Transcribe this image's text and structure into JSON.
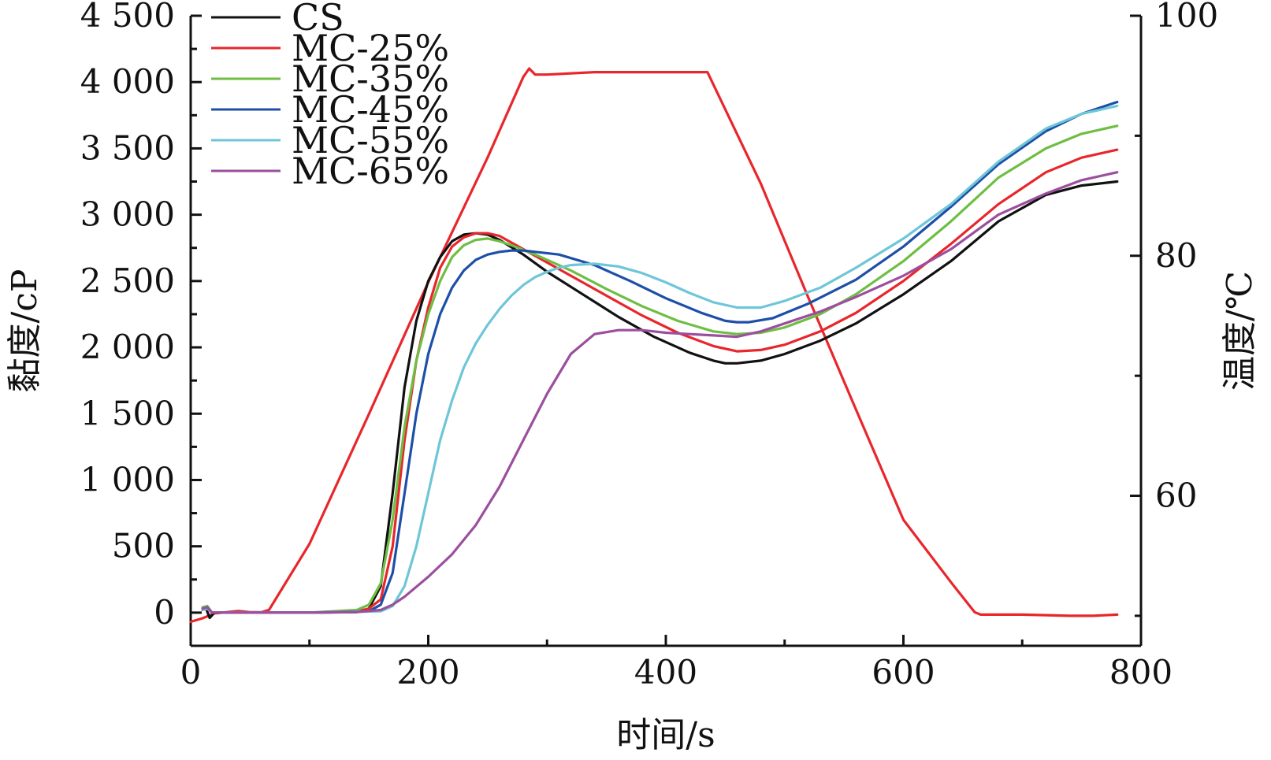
{
  "chart_data": {
    "type": "line",
    "title": "",
    "xlabel": "时间/s",
    "ylabel": "黏度/cP",
    "y2label": "温度/℃",
    "xlim": [
      0,
      800
    ],
    "ylim": [
      -250,
      4500
    ],
    "y2lim": [
      47.5,
      100
    ],
    "x_ticks": [
      {
        "value": 0,
        "label": "0"
      },
      {
        "value": 200,
        "label": "200"
      },
      {
        "value": 400,
        "label": "400"
      },
      {
        "value": 600,
        "label": "600"
      },
      {
        "value": 800,
        "label": "800"
      }
    ],
    "x_minor_ticks": [
      100,
      300,
      500,
      700
    ],
    "y_ticks": [
      {
        "value": 0,
        "label": "0"
      },
      {
        "value": 500,
        "label": "500"
      },
      {
        "value": 1000,
        "label": "1 000"
      },
      {
        "value": 1500,
        "label": "1 500"
      },
      {
        "value": 2000,
        "label": "2 000"
      },
      {
        "value": 2500,
        "label": "2 500"
      },
      {
        "value": 3000,
        "label": "3 000"
      },
      {
        "value": 3500,
        "label": "3 500"
      },
      {
        "value": 4000,
        "label": "4 000"
      },
      {
        "value": 4500,
        "label": "4 500"
      }
    ],
    "y_minor_ticks": [
      250,
      750,
      1250,
      1750,
      2250,
      2750,
      3250,
      3750,
      4250
    ],
    "y2_ticks": [
      {
        "value": 60,
        "label": "60"
      },
      {
        "value": 80,
        "label": "80"
      },
      {
        "value": 100,
        "label": "100"
      }
    ],
    "y2_minor_ticks": [
      50,
      70,
      90
    ],
    "grid": false,
    "legend_position": "top-left",
    "series": [
      {
        "name": "CS",
        "color": "#111111",
        "x": [
          10,
          13,
          16,
          20,
          60,
          100,
          140,
          150,
          160,
          170,
          180,
          190,
          200,
          210,
          220,
          230,
          240,
          250,
          260,
          280,
          300,
          330,
          360,
          390,
          420,
          440,
          450,
          460,
          480,
          500,
          530,
          560,
          600,
          640,
          680,
          720,
          750,
          780
        ],
        "y": [
          20,
          30,
          -40,
          0,
          0,
          0,
          5,
          30,
          200,
          900,
          1700,
          2200,
          2500,
          2680,
          2800,
          2850,
          2860,
          2850,
          2810,
          2700,
          2570,
          2400,
          2230,
          2080,
          1960,
          1900,
          1880,
          1880,
          1900,
          1950,
          2050,
          2180,
          2400,
          2650,
          2950,
          3150,
          3220,
          3250
        ]
      },
      {
        "name": "MC-25%",
        "color": "#e8262b",
        "x": [
          10,
          14,
          18,
          60,
          100,
          140,
          150,
          160,
          170,
          180,
          190,
          200,
          210,
          220,
          230,
          240,
          250,
          260,
          270,
          290,
          320,
          350,
          380,
          410,
          440,
          460,
          480,
          500,
          530,
          560,
          600,
          640,
          680,
          720,
          750,
          780
        ],
        "y": [
          30,
          40,
          0,
          0,
          0,
          10,
          30,
          100,
          500,
          1300,
          1900,
          2300,
          2600,
          2760,
          2830,
          2860,
          2860,
          2840,
          2790,
          2690,
          2540,
          2390,
          2240,
          2110,
          2010,
          1970,
          1980,
          2020,
          2120,
          2260,
          2500,
          2780,
          3080,
          3320,
          3430,
          3490
        ]
      },
      {
        "name": "MC-35%",
        "color": "#6fbe44",
        "x": [
          10,
          14,
          18,
          60,
          100,
          140,
          150,
          160,
          170,
          180,
          190,
          200,
          210,
          220,
          230,
          240,
          250,
          260,
          270,
          290,
          320,
          350,
          380,
          410,
          440,
          460,
          480,
          500,
          530,
          560,
          600,
          640,
          680,
          720,
          750,
          780
        ],
        "y": [
          40,
          50,
          0,
          0,
          0,
          20,
          60,
          220,
          700,
          1400,
          1900,
          2250,
          2500,
          2680,
          2770,
          2810,
          2820,
          2800,
          2770,
          2700,
          2580,
          2440,
          2310,
          2200,
          2120,
          2100,
          2110,
          2150,
          2250,
          2400,
          2650,
          2950,
          3280,
          3500,
          3610,
          3670
        ]
      },
      {
        "name": "MC-45%",
        "color": "#1e4fa8",
        "x": [
          10,
          14,
          18,
          60,
          100,
          150,
          160,
          170,
          180,
          190,
          200,
          210,
          220,
          230,
          240,
          250,
          260,
          270,
          280,
          290,
          310,
          340,
          370,
          400,
          430,
          450,
          460,
          470,
          490,
          520,
          560,
          600,
          640,
          680,
          720,
          750,
          780
        ],
        "y": [
          30,
          40,
          0,
          0,
          0,
          10,
          60,
          300,
          900,
          1500,
          1950,
          2250,
          2450,
          2580,
          2660,
          2700,
          2720,
          2730,
          2730,
          2720,
          2700,
          2620,
          2500,
          2370,
          2260,
          2200,
          2190,
          2190,
          2220,
          2330,
          2510,
          2760,
          3060,
          3380,
          3630,
          3760,
          3850
        ]
      },
      {
        "name": "MC-55%",
        "color": "#6ec6d8",
        "x": [
          10,
          14,
          18,
          60,
          100,
          160,
          170,
          180,
          190,
          200,
          210,
          220,
          230,
          240,
          250,
          260,
          270,
          280,
          290,
          300,
          310,
          320,
          340,
          360,
          380,
          400,
          420,
          440,
          460,
          480,
          500,
          530,
          560,
          600,
          640,
          680,
          720,
          750,
          780
        ],
        "y": [
          20,
          30,
          0,
          0,
          0,
          10,
          50,
          200,
          500,
          900,
          1300,
          1600,
          1850,
          2030,
          2170,
          2290,
          2390,
          2470,
          2530,
          2570,
          2600,
          2620,
          2630,
          2610,
          2560,
          2490,
          2410,
          2340,
          2300,
          2300,
          2350,
          2450,
          2600,
          2820,
          3080,
          3400,
          3650,
          3760,
          3820
        ]
      },
      {
        "name": "MC-65%",
        "color": "#9b4f9e",
        "x": [
          10,
          14,
          18,
          60,
          100,
          140,
          160,
          170,
          180,
          200,
          220,
          240,
          260,
          280,
          300,
          320,
          340,
          360,
          380,
          400,
          420,
          440,
          460,
          480,
          500,
          530,
          560,
          600,
          640,
          680,
          720,
          750,
          780
        ],
        "y": [
          30,
          40,
          0,
          0,
          0,
          5,
          20,
          60,
          120,
          270,
          440,
          660,
          950,
          1300,
          1650,
          1950,
          2100,
          2130,
          2130,
          2110,
          2100,
          2090,
          2080,
          2120,
          2180,
          2270,
          2380,
          2540,
          2740,
          3000,
          3160,
          3260,
          3320
        ]
      }
    ],
    "temperature_series": {
      "name": "温度",
      "color": "#e8262b",
      "axis": "right",
      "x": [
        0,
        10,
        20,
        40,
        50,
        60,
        66,
        100,
        150,
        200,
        250,
        280,
        285,
        290,
        300,
        340,
        380,
        420,
        435,
        480,
        520,
        560,
        600,
        640,
        660,
        665,
        700,
        740,
        760,
        780
      ],
      "y": [
        49.5,
        49.8,
        50.2,
        50.4,
        50.3,
        50.3,
        50.5,
        56,
        66.8,
        77.8,
        88.2,
        94.9,
        95.6,
        95.1,
        95.1,
        95.3,
        95.3,
        95.3,
        95.3,
        86.0,
        76.5,
        67.2,
        58.0,
        52.8,
        50.3,
        50.1,
        50.1,
        50.0,
        50.0,
        50.1
      ]
    }
  }
}
